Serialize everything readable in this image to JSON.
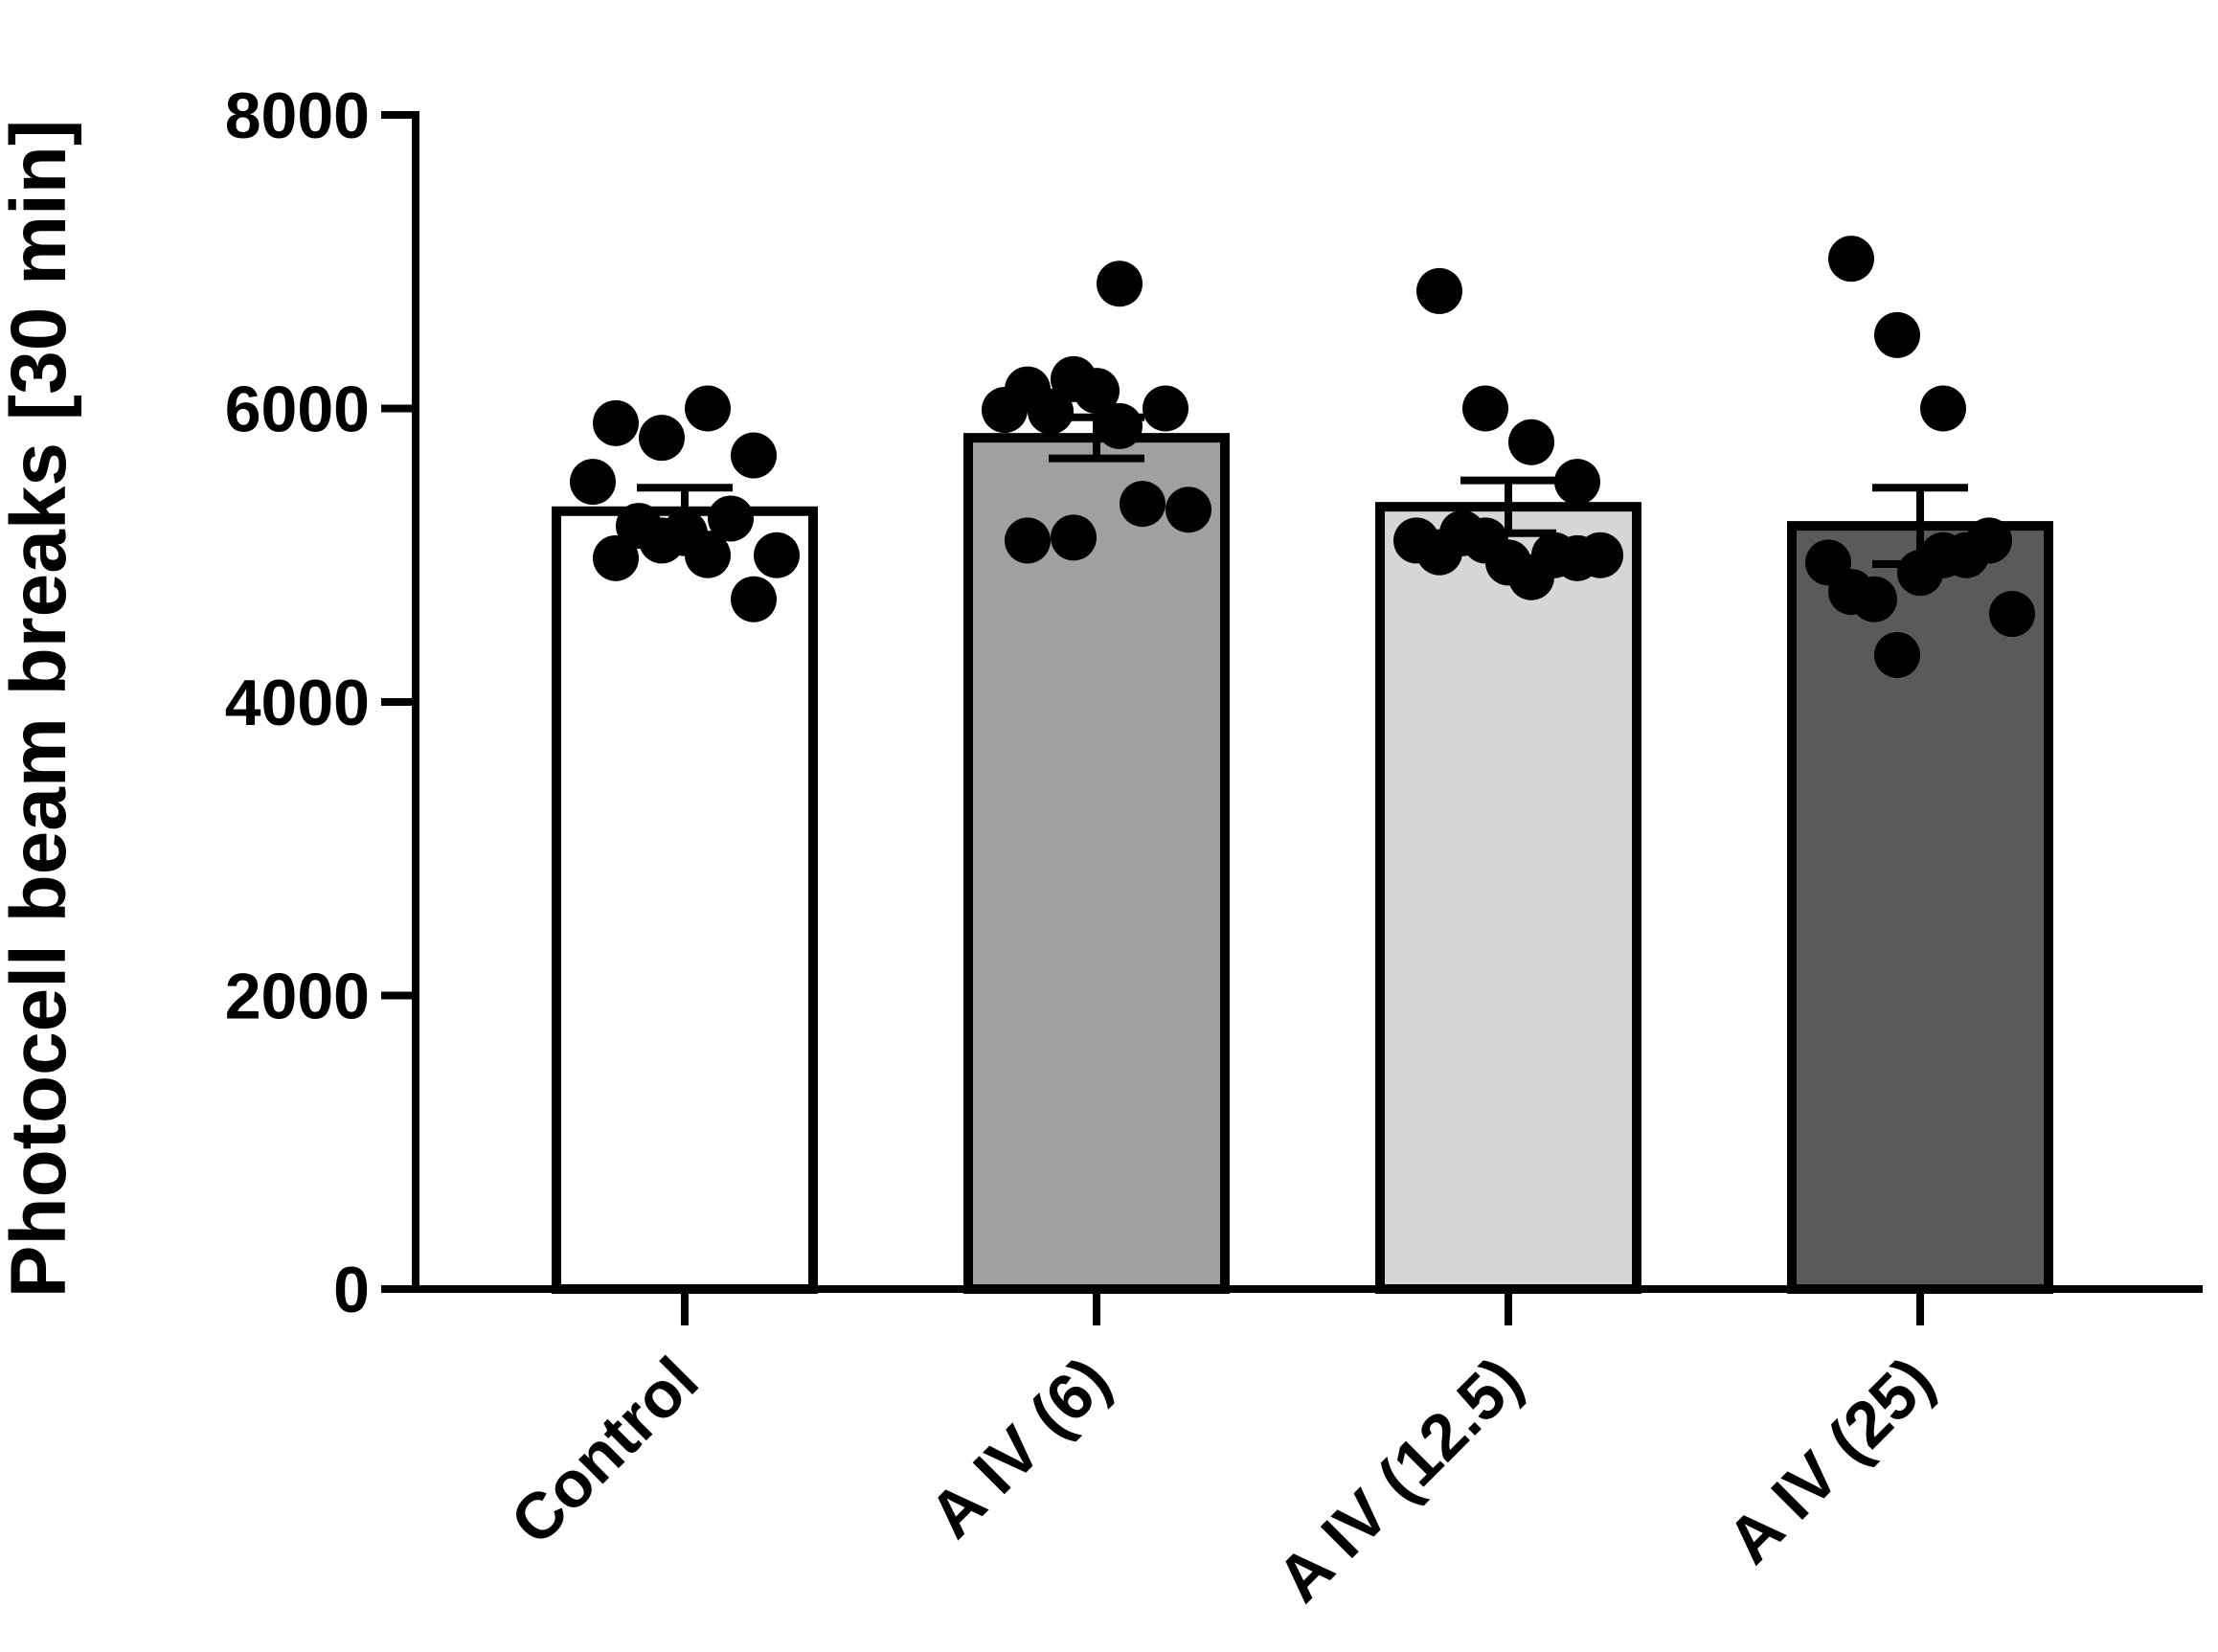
{
  "chart_data": {
    "type": "bar",
    "title": "",
    "xlabel": "",
    "ylabel": "Photocell beam breaks [30 min]",
    "ylim": [
      0,
      8000
    ],
    "yticks": [
      0,
      2000,
      4000,
      6000,
      8000
    ],
    "grid": false,
    "categories": [
      "Control",
      "A IV (6)",
      "A IV (12.5)",
      "A IV (25)"
    ],
    "values": [
      5300,
      5800,
      5330,
      5200
    ],
    "sem": [
      160,
      140,
      180,
      260
    ],
    "bar_colors": [
      "#ffffff",
      "#a0a0a3",
      "#d6d6d6",
      "#5a5a5a"
    ],
    "points": [
      [
        5900,
        5800,
        6000,
        5680,
        5500,
        5200,
        5150,
        5250,
        5000,
        4980,
        5100,
        5000,
        4700
      ],
      [
        6130,
        6200,
        5880,
        6000,
        5990,
        5980,
        6120,
        5350,
        5310,
        5100,
        5120,
        6850
      ],
      [
        6800,
        6000,
        5770,
        5500,
        5100,
        5150,
        4950,
        5000,
        5000,
        5020,
        5100,
        4850,
        4980
      ],
      [
        7020,
        6500,
        6000,
        5100,
        4950,
        4700,
        4880,
        5000,
        4600,
        4750,
        4320,
        5000
      ]
    ]
  }
}
